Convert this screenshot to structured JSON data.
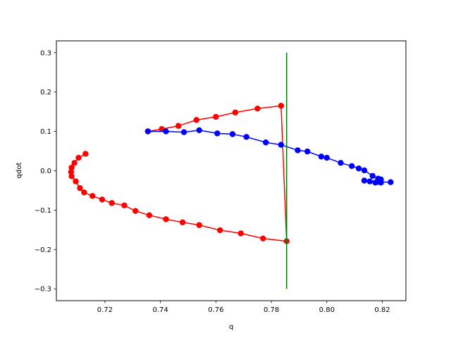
{
  "chart_data": {
    "type": "line",
    "title": "",
    "xlabel": "q",
    "ylabel": "qdot",
    "xlim": [
      0.7025,
      0.8285
    ],
    "ylim": [
      -0.33,
      0.33
    ],
    "xticks": [
      0.72,
      0.74,
      0.76,
      0.78,
      0.8,
      0.82
    ],
    "xtick_labels": [
      "0.72",
      "0.74",
      "0.76",
      "0.78",
      "0.80",
      "0.82"
    ],
    "yticks": [
      -0.3,
      -0.2,
      -0.1,
      0.0,
      0.1,
      0.2,
      0.3
    ],
    "ytick_labels": [
      "−0.3",
      "−0.2",
      "−0.1",
      "0.0",
      "0.1",
      "0.2",
      "0.3"
    ],
    "grid": false,
    "legend": "none",
    "series": [
      {
        "color": "#ff0000",
        "marker": "circle",
        "points": [
          [
            0.713,
            0.043
          ],
          [
            0.7105,
            0.033
          ],
          [
            0.709,
            0.02
          ],
          [
            0.708,
            0.008
          ],
          [
            0.7078,
            -0.003
          ],
          [
            0.708,
            -0.014
          ],
          [
            0.7095,
            -0.027
          ],
          [
            0.711,
            -0.044
          ],
          [
            0.7125,
            -0.055
          ],
          [
            0.7155,
            -0.064
          ],
          [
            0.719,
            -0.073
          ],
          [
            0.7225,
            -0.082
          ],
          [
            0.727,
            -0.088
          ],
          [
            0.731,
            -0.102
          ],
          [
            0.736,
            -0.113
          ],
          [
            0.742,
            -0.123
          ],
          [
            0.748,
            -0.131
          ],
          [
            0.754,
            -0.138
          ],
          [
            0.7615,
            -0.151
          ],
          [
            0.769,
            -0.159
          ],
          [
            0.777,
            -0.172
          ],
          [
            0.7855,
            -0.179
          ],
          [
            0.7835,
            0.165
          ],
          [
            0.775,
            0.158
          ],
          [
            0.767,
            0.148
          ],
          [
            0.76,
            0.137
          ],
          [
            0.753,
            0.129
          ],
          [
            0.7465,
            0.114
          ],
          [
            0.7405,
            0.106
          ],
          [
            0.7355,
            0.1
          ]
        ]
      },
      {
        "color": "#0000ff",
        "marker": "circle",
        "points": [
          [
            0.7355,
            0.1
          ],
          [
            0.742,
            0.1
          ],
          [
            0.7485,
            0.098
          ],
          [
            0.754,
            0.103
          ],
          [
            0.7605,
            0.095
          ],
          [
            0.766,
            0.093
          ],
          [
            0.771,
            0.086
          ],
          [
            0.778,
            0.072
          ],
          [
            0.7835,
            0.066
          ],
          [
            0.7895,
            0.052
          ],
          [
            0.793,
            0.049
          ],
          [
            0.798,
            0.036
          ],
          [
            0.8,
            0.033
          ],
          [
            0.805,
            0.02
          ],
          [
            0.809,
            0.012
          ],
          [
            0.8115,
            0.006
          ],
          [
            0.8135,
            0.001
          ],
          [
            0.8165,
            -0.013
          ],
          [
            0.8185,
            -0.02
          ],
          [
            0.8195,
            -0.022
          ],
          [
            0.8195,
            -0.03
          ],
          [
            0.8175,
            -0.03
          ],
          [
            0.8155,
            -0.027
          ],
          [
            0.8135,
            -0.025
          ],
          [
            0.8185,
            -0.028
          ],
          [
            0.823,
            -0.029
          ]
        ]
      },
      {
        "color": "#008000",
        "marker": "none",
        "points": [
          [
            0.7855,
            0.3
          ],
          [
            0.7855,
            -0.3
          ]
        ]
      }
    ]
  }
}
